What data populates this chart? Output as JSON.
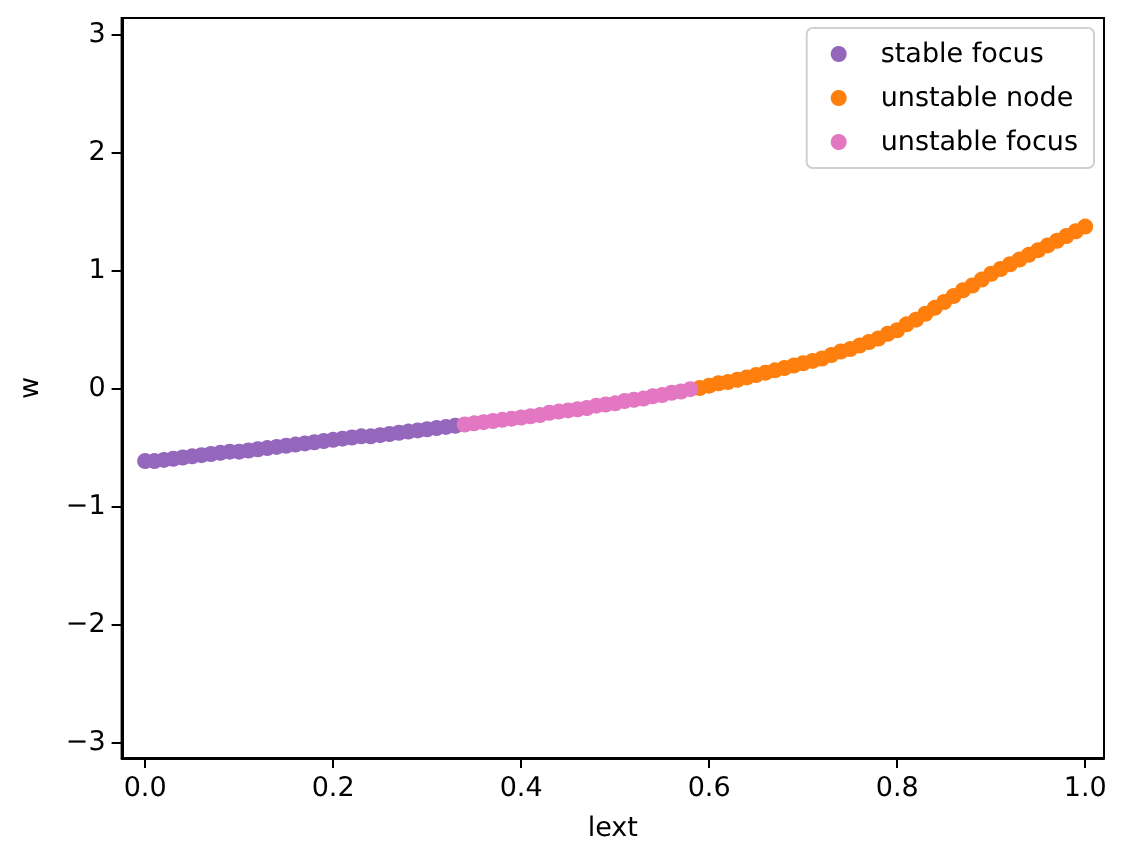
{
  "chart_data": {
    "type": "scatter",
    "xlabel": "lext",
    "ylabel": "w",
    "xlim": [
      -0.025,
      1.02
    ],
    "ylim": [
      -3.14,
      3.14
    ],
    "xticks": [
      {
        "value": 0,
        "label": "0.0"
      },
      0.2,
      0.4,
      0.6,
      0.8,
      {
        "value": 1,
        "label": "1.0"
      }
    ],
    "yticks": [
      {
        "value": -3,
        "label": "−3"
      },
      {
        "value": -2,
        "label": "−2"
      },
      {
        "value": -1,
        "label": "−1"
      },
      0,
      1,
      2,
      3
    ],
    "legend": "top right",
    "marker": "circle",
    "series": [
      {
        "name": "stable focus",
        "color": "#9467bd",
        "x": [
          0,
          0.01,
          0.02,
          0.03,
          0.04,
          0.05,
          0.06,
          0.07,
          0.08,
          0.09,
          0.1,
          0.11,
          0.12,
          0.13,
          0.14,
          0.15,
          0.16,
          0.17,
          0.18,
          0.19,
          0.2,
          0.21,
          0.22,
          0.23,
          0.24,
          0.25,
          0.26,
          0.27,
          0.28,
          0.29,
          0.3,
          0.31,
          0.32,
          0.33
        ],
        "values": [
          -0.62,
          -0.62,
          -0.61,
          -0.6,
          -0.59,
          -0.58,
          -0.57,
          -0.56,
          -0.55,
          -0.54,
          -0.54,
          -0.53,
          -0.52,
          -0.51,
          -0.5,
          -0.49,
          -0.48,
          -0.47,
          -0.46,
          -0.45,
          -0.44,
          -0.43,
          -0.42,
          -0.41,
          -0.41,
          -0.4,
          -0.39,
          -0.38,
          -0.37,
          -0.36,
          -0.35,
          -0.34,
          -0.33,
          -0.32
        ]
      },
      {
        "name": "unstable node",
        "color": "#ff7f0e",
        "x": [
          0.59,
          0.6,
          0.61,
          0.62,
          0.63,
          0.64,
          0.65,
          0.66,
          0.67,
          0.68,
          0.69,
          0.7,
          0.71,
          0.72,
          0.73,
          0.74,
          0.75,
          0.76,
          0.77,
          0.78,
          0.79,
          0.8,
          0.81,
          0.82,
          0.83,
          0.84,
          0.85,
          0.86,
          0.87,
          0.88,
          0.89,
          0.9,
          0.91,
          0.92,
          0.93,
          0.94,
          0.95,
          0.96,
          0.97,
          0.98,
          0.99,
          1
        ],
        "values": [
          0,
          0.02,
          0.04,
          0.05,
          0.07,
          0.09,
          0.11,
          0.13,
          0.15,
          0.17,
          0.19,
          0.21,
          0.23,
          0.25,
          0.28,
          0.31,
          0.33,
          0.36,
          0.39,
          0.42,
          0.46,
          0.49,
          0.54,
          0.58,
          0.63,
          0.68,
          0.73,
          0.78,
          0.83,
          0.87,
          0.92,
          0.97,
          1.01,
          1.05,
          1.09,
          1.13,
          1.17,
          1.21,
          1.25,
          1.29,
          1.33,
          1.37
        ]
      },
      {
        "name": "unstable focus",
        "color": "#e377c2",
        "x": [
          0.34,
          0.35,
          0.36,
          0.37,
          0.38,
          0.39,
          0.4,
          0.41,
          0.42,
          0.43,
          0.44,
          0.45,
          0.46,
          0.47,
          0.48,
          0.49,
          0.5,
          0.51,
          0.52,
          0.53,
          0.54,
          0.55,
          0.56,
          0.57,
          0.58
        ],
        "values": [
          -0.31,
          -0.3,
          -0.29,
          -0.28,
          -0.27,
          -0.26,
          -0.25,
          -0.24,
          -0.23,
          -0.21,
          -0.2,
          -0.19,
          -0.18,
          -0.17,
          -0.15,
          -0.14,
          -0.13,
          -0.11,
          -0.1,
          -0.09,
          -0.07,
          -0.06,
          -0.04,
          -0.03,
          -0.01
        ]
      }
    ]
  }
}
